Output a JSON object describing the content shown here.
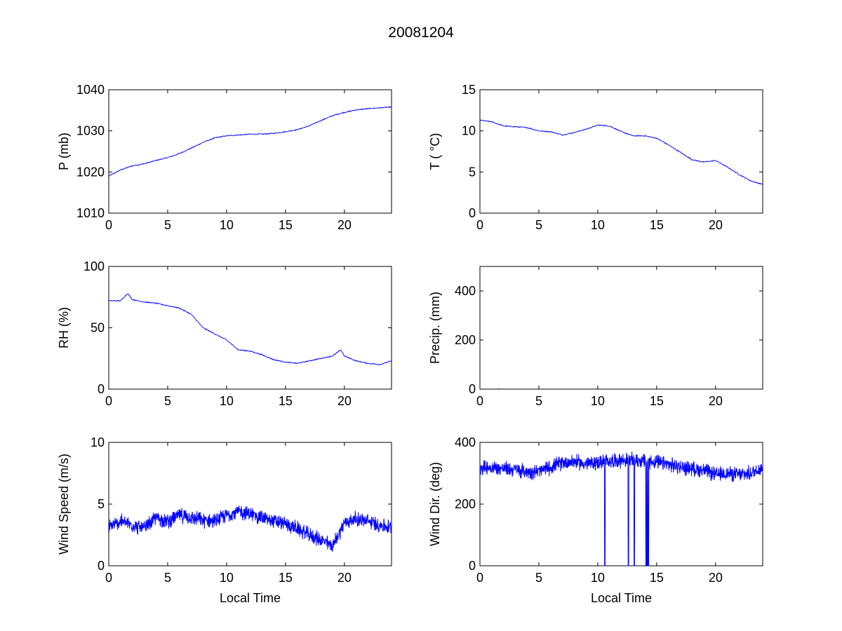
{
  "figure": {
    "title": "20081204"
  },
  "chart_data": [
    {
      "type": "line",
      "ylabel": "P (mb)",
      "xlabel": "",
      "xlim": [
        0,
        24
      ],
      "ylim": [
        1010,
        1040
      ],
      "xticks": [
        0,
        5,
        10,
        15,
        20
      ],
      "yticks": [
        1010,
        1020,
        1030,
        1040
      ],
      "grid": false,
      "color": "#0000ff",
      "series": [
        {
          "x": [
            0,
            1,
            2,
            3,
            4,
            5,
            6,
            7,
            8,
            9,
            10,
            11,
            12,
            13,
            14,
            15,
            16,
            17,
            18,
            19,
            20,
            21,
            22,
            23,
            24
          ],
          "y": [
            1019,
            1020.5,
            1021.5,
            1022,
            1022.8,
            1023.5,
            1024.5,
            1025.8,
            1027.2,
            1028.3,
            1028.8,
            1029,
            1029.2,
            1029.2,
            1029.4,
            1029.8,
            1030.3,
            1031.2,
            1032.5,
            1033.7,
            1034.5,
            1035.1,
            1035.4,
            1035.6,
            1035.8
          ]
        }
      ]
    },
    {
      "type": "line",
      "ylabel": "T ( °C)",
      "xlabel": "",
      "xlim": [
        0,
        24
      ],
      "ylim": [
        0,
        15
      ],
      "xticks": [
        0,
        5,
        10,
        15,
        20
      ],
      "yticks": [
        0,
        5,
        10,
        15
      ],
      "grid": false,
      "color": "#0000ff",
      "series": [
        {
          "x": [
            0,
            1,
            2,
            3,
            4,
            5,
            6,
            7,
            8,
            9,
            10,
            11,
            12,
            13,
            14,
            15,
            16,
            17,
            18,
            19,
            20,
            21,
            22,
            23,
            24
          ],
          "y": [
            11.3,
            11.1,
            10.6,
            10.5,
            10.4,
            10.0,
            9.9,
            9.5,
            9.8,
            10.2,
            10.7,
            10.6,
            9.9,
            9.4,
            9.4,
            9.1,
            8.3,
            7.4,
            6.5,
            6.2,
            6.4,
            5.6,
            4.7,
            3.9,
            3.5
          ]
        }
      ]
    },
    {
      "type": "line",
      "ylabel": "RH (%)",
      "xlabel": "",
      "xlim": [
        0,
        24
      ],
      "ylim": [
        0,
        100
      ],
      "xticks": [
        0,
        5,
        10,
        15,
        20
      ],
      "yticks": [
        0,
        50,
        100
      ],
      "grid": false,
      "color": "#0000ff",
      "series": [
        {
          "x": [
            0,
            1,
            1.6,
            2,
            3,
            4,
            5,
            6,
            7,
            8,
            9,
            10,
            11,
            12,
            13,
            14,
            15,
            16,
            17,
            18,
            19,
            19.7,
            20,
            21,
            22,
            23,
            24
          ],
          "y": [
            72,
            72,
            78,
            73,
            71,
            70,
            68,
            66,
            61,
            50,
            45,
            40,
            32,
            31,
            28,
            24,
            22,
            21,
            23,
            25,
            27,
            32,
            27,
            23,
            21,
            20,
            23
          ]
        }
      ]
    },
    {
      "type": "line",
      "ylabel": "Precip. (mm)",
      "xlabel": "",
      "xlim": [
        0,
        24
      ],
      "ylim": [
        0,
        500
      ],
      "xticks": [
        0,
        5,
        10,
        15,
        20
      ],
      "yticks": [
        0,
        200,
        400
      ],
      "grid": false,
      "color": "#0000ff",
      "series": [
        {
          "x": [
            1.5,
            1.7
          ],
          "y": [
            1,
            1
          ]
        }
      ]
    },
    {
      "type": "line",
      "ylabel": "Wind Speed (m/s)",
      "xlabel": "Local Time",
      "xlim": [
        0,
        24
      ],
      "ylim": [
        0,
        10
      ],
      "xticks": [
        0,
        5,
        10,
        15,
        20
      ],
      "yticks": [
        0,
        5,
        10
      ],
      "grid": false,
      "color": "#0000ff",
      "noisy": true,
      "series": [
        {
          "x": [
            0,
            1,
            2,
            3,
            4,
            5,
            6,
            7,
            8,
            9,
            10,
            11,
            12,
            13,
            14,
            15,
            16,
            17,
            18,
            19,
            20,
            21,
            22,
            23,
            24
          ],
          "y": [
            3.1,
            3.6,
            3.3,
            3.0,
            3.9,
            3.6,
            4.1,
            3.9,
            3.7,
            3.6,
            4.1,
            4.4,
            4.2,
            3.9,
            3.6,
            3.4,
            3.0,
            2.5,
            2.1,
            1.6,
            3.5,
            3.8,
            3.6,
            3.3,
            3.1
          ]
        }
      ]
    },
    {
      "type": "line",
      "ylabel": "Wind Dir. (deg)",
      "xlabel": "Local Time",
      "xlim": [
        0,
        24
      ],
      "ylim": [
        0,
        400
      ],
      "xticks": [
        0,
        5,
        10,
        15,
        20
      ],
      "yticks": [
        0,
        200,
        400
      ],
      "grid": false,
      "color": "#0000ff",
      "noisy": true,
      "series": [
        {
          "x": [
            0,
            1,
            2,
            3,
            4,
            5,
            6,
            7,
            8,
            9,
            10,
            11,
            12,
            13,
            14,
            15,
            16,
            17,
            18,
            19,
            20,
            21,
            22,
            23,
            24
          ],
          "y": [
            320,
            318,
            315,
            312,
            305,
            306,
            320,
            335,
            338,
            330,
            335,
            340,
            342,
            342,
            340,
            335,
            328,
            320,
            315,
            310,
            295,
            300,
            295,
            300,
            320
          ]
        }
      ],
      "drops": [
        10.6,
        12.6,
        13.1,
        14.1,
        14.2,
        14.3
      ]
    }
  ]
}
